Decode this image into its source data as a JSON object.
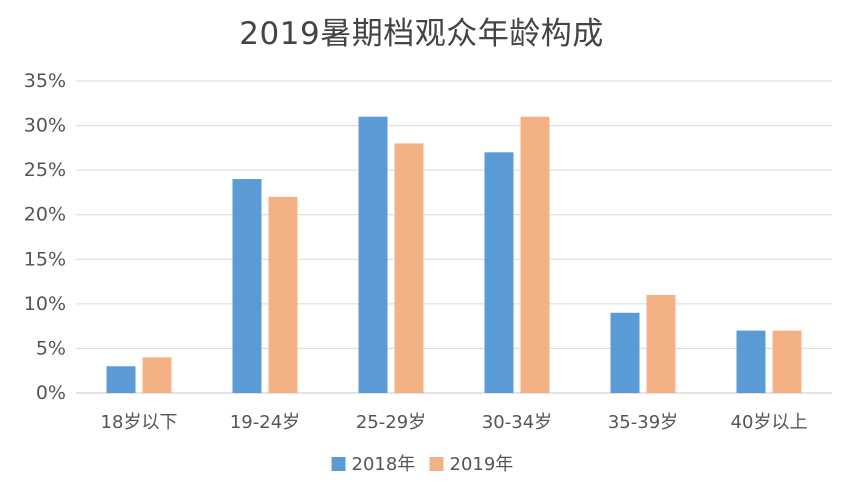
{
  "chart_data": {
    "type": "bar",
    "title": "2019暑期档观众年龄构成",
    "xlabel": "",
    "ylabel": "",
    "categories": [
      "18岁以下",
      "19-24岁",
      "25-29岁",
      "30-34岁",
      "35-39岁",
      "40岁以上"
    ],
    "series": [
      {
        "name": "2018年",
        "color": "#5b9bd5",
        "values": [
          3,
          24,
          31,
          27,
          9,
          7
        ]
      },
      {
        "name": "2019年",
        "color": "#f4b183",
        "values": [
          4,
          22,
          28,
          31,
          11,
          7
        ]
      }
    ],
    "ylim": [
      0,
      35
    ],
    "yticks": [
      "0%",
      "5%",
      "10%",
      "15%",
      "20%",
      "25%",
      "30%",
      "35%"
    ],
    "grid": true,
    "legend_position": "bottom"
  }
}
